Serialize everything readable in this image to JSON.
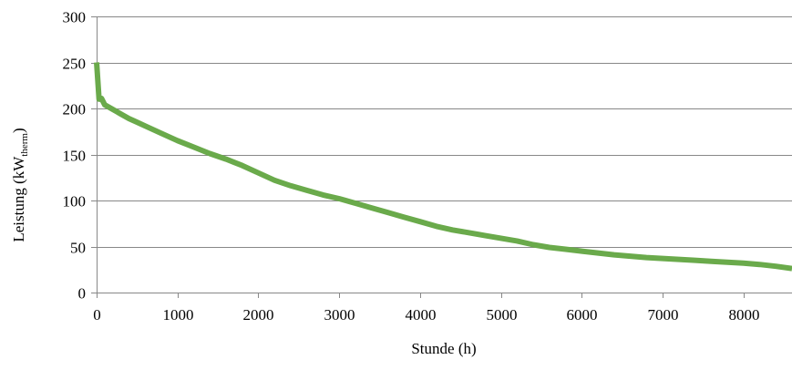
{
  "chart_data": {
    "type": "line",
    "title": "",
    "xlabel": "Stunde (h)",
    "ylabel": {
      "prefix": "Leistung (kW",
      "subscript": "therm",
      "suffix": ")"
    },
    "xlim": [
      0,
      8600
    ],
    "ylim": [
      0,
      300
    ],
    "x_ticks": [
      "0",
      "1000",
      "2000",
      "3000",
      "4000",
      "5000",
      "6000",
      "7000",
      "8000"
    ],
    "y_ticks": [
      "0",
      "50",
      "100",
      "150",
      "200",
      "250",
      "300"
    ],
    "grid": "horizontal",
    "legend": "none",
    "colors": {
      "series": "#6aaa4b",
      "grid": "#888888",
      "axis": "#888888"
    },
    "series": [
      {
        "x": [
          0,
          30,
          60,
          100,
          200,
          300,
          400,
          500,
          600,
          800,
          1000,
          1200,
          1400,
          1600,
          1800,
          2000,
          2200,
          2400,
          2600,
          2800,
          3000,
          3200,
          3400,
          3600,
          3800,
          4000,
          4200,
          4400,
          4600,
          4800,
          5000,
          5200,
          5400,
          5600,
          5800,
          6000,
          6200,
          6400,
          6600,
          6800,
          7000,
          7200,
          7400,
          7600,
          7800,
          8000,
          8200,
          8400,
          8600
        ],
        "y": [
          250,
          210,
          211,
          204,
          199,
          194,
          189,
          185,
          181,
          173,
          165,
          158,
          151,
          145,
          138,
          130,
          122,
          116,
          111,
          106,
          102,
          97,
          92,
          87,
          82,
          77,
          72,
          68,
          65,
          62,
          59,
          56,
          52,
          49,
          47,
          45,
          43,
          41,
          39.5,
          38,
          37,
          36,
          35,
          34,
          33,
          32,
          30.5,
          28.5,
          26
        ]
      }
    ]
  }
}
